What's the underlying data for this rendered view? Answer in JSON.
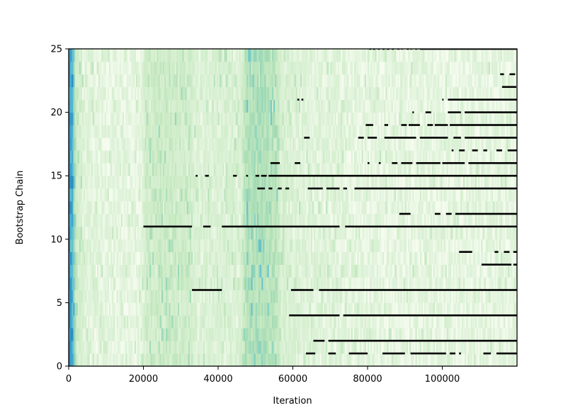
{
  "chart_data": {
    "type": "heatmap",
    "xlabel": "Iteration",
    "ylabel": "Bootstrap Chain",
    "xlim": [
      0,
      120000
    ],
    "ylim": [
      0,
      25
    ],
    "x_ticks": [
      0,
      20000,
      40000,
      60000,
      80000,
      100000
    ],
    "y_ticks": [
      0,
      5,
      10,
      15,
      20,
      25
    ],
    "x_tick_labels": [
      "0",
      "20000",
      "40000",
      "60000",
      "80000",
      "100000"
    ],
    "y_tick_labels": [
      "0",
      "5",
      "10",
      "15",
      "20",
      "25"
    ],
    "grid": false,
    "colormap": "GnBu",
    "colors": {
      "low": "#f7fcf0",
      "mid": "#a8ddb5",
      "high": "#2b8cbe",
      "marker": "#000000"
    },
    "intensity_profile": [
      {
        "x": 0,
        "level": 1.0
      },
      {
        "x": 1000,
        "level": 0.85
      },
      {
        "x": 2000,
        "level": 0.35
      },
      {
        "x": 4000,
        "level": 0.18
      },
      {
        "x": 10000,
        "level": 0.12
      },
      {
        "x": 19500,
        "level": 0.12
      },
      {
        "x": 20500,
        "level": 0.3
      },
      {
        "x": 26000,
        "level": 0.35
      },
      {
        "x": 32500,
        "level": 0.3
      },
      {
        "x": 34000,
        "level": 0.2
      },
      {
        "x": 46000,
        "level": 0.22
      },
      {
        "x": 47500,
        "level": 0.5
      },
      {
        "x": 52000,
        "level": 0.52
      },
      {
        "x": 55500,
        "level": 0.45
      },
      {
        "x": 57000,
        "level": 0.25
      },
      {
        "x": 62000,
        "level": 0.18
      },
      {
        "x": 80000,
        "level": 0.12
      },
      {
        "x": 120000,
        "level": 0.12
      }
    ],
    "marker_segments": [
      {
        "chain": 25,
        "segments": [
          [
            80500,
            81000
          ],
          [
            81500,
            82000
          ],
          [
            82800,
            83200
          ],
          [
            84000,
            84500
          ],
          [
            85200,
            85800
          ],
          [
            86500,
            87000
          ],
          [
            88000,
            88500
          ],
          [
            89000,
            89300
          ],
          [
            90500,
            91000
          ],
          [
            91500,
            91800
          ],
          [
            92800,
            93200
          ],
          [
            94000,
            120000
          ]
        ]
      },
      {
        "chain": 23,
        "segments": [
          [
            115500,
            116500
          ],
          [
            118000,
            119500
          ]
        ]
      },
      {
        "chain": 22,
        "segments": [
          [
            116000,
            119800
          ]
        ]
      },
      {
        "chain": 21,
        "segments": [
          [
            61200,
            61700
          ],
          [
            62300,
            62800
          ],
          [
            100000,
            100300
          ],
          [
            101500,
            120000
          ]
        ]
      },
      {
        "chain": 20,
        "segments": [
          [
            92000,
            92400
          ],
          [
            95500,
            97000
          ],
          [
            101500,
            105000
          ],
          [
            106000,
            120000
          ]
        ]
      },
      {
        "chain": 19,
        "segments": [
          [
            79500,
            81500
          ],
          [
            84500,
            85500
          ],
          [
            89000,
            90500
          ],
          [
            91000,
            94000
          ],
          [
            96000,
            97500
          ],
          [
            98000,
            101500
          ],
          [
            102000,
            120000
          ]
        ]
      },
      {
        "chain": 18,
        "segments": [
          [
            63000,
            64500
          ],
          [
            77500,
            79000
          ],
          [
            80000,
            82500
          ],
          [
            84500,
            93000
          ],
          [
            94000,
            101500
          ],
          [
            103000,
            105000
          ],
          [
            106000,
            120000
          ]
        ]
      },
      {
        "chain": 17,
        "segments": [
          [
            102500,
            103000
          ],
          [
            104500,
            106000
          ],
          [
            108000,
            109500
          ],
          [
            111000,
            112000
          ],
          [
            114500,
            116000
          ],
          [
            117500,
            120000
          ]
        ]
      },
      {
        "chain": 16,
        "segments": [
          [
            54000,
            56500
          ],
          [
            60500,
            62000
          ],
          [
            80000,
            80500
          ],
          [
            83000,
            83500
          ],
          [
            86500,
            88000
          ],
          [
            89000,
            92000
          ],
          [
            93000,
            99500
          ],
          [
            100000,
            106000
          ],
          [
            107000,
            120000
          ]
        ]
      },
      {
        "chain": 15,
        "segments": [
          [
            34000,
            34500
          ],
          [
            36500,
            37500
          ],
          [
            44000,
            45000
          ],
          [
            47500,
            48000
          ],
          [
            50000,
            51000
          ],
          [
            51500,
            53000
          ],
          [
            53500,
            120000
          ]
        ]
      },
      {
        "chain": 14,
        "segments": [
          [
            50500,
            52500
          ],
          [
            53500,
            54500
          ],
          [
            56000,
            57000
          ],
          [
            58000,
            59000
          ],
          [
            64000,
            68000
          ],
          [
            69000,
            72500
          ],
          [
            73500,
            74500
          ],
          [
            76500,
            120000
          ]
        ]
      },
      {
        "chain": 12,
        "segments": [
          [
            88500,
            91500
          ],
          [
            98000,
            99500
          ],
          [
            101000,
            102500
          ],
          [
            103500,
            120000
          ]
        ]
      },
      {
        "chain": 11,
        "segments": [
          [
            20000,
            33000
          ],
          [
            36000,
            38000
          ],
          [
            41000,
            72500
          ],
          [
            74000,
            120000
          ]
        ]
      },
      {
        "chain": 9,
        "segments": [
          [
            104500,
            108000
          ],
          [
            114000,
            115000
          ],
          [
            116500,
            118000
          ],
          [
            119000,
            120000
          ]
        ]
      },
      {
        "chain": 8,
        "segments": [
          [
            110500,
            118500
          ],
          [
            119000,
            120000
          ]
        ]
      },
      {
        "chain": 6,
        "segments": [
          [
            33000,
            41000
          ],
          [
            59500,
            65500
          ],
          [
            67000,
            120000
          ]
        ]
      },
      {
        "chain": 4,
        "segments": [
          [
            59000,
            72500
          ],
          [
            73500,
            120000
          ]
        ]
      },
      {
        "chain": 2,
        "segments": [
          [
            65500,
            68500
          ],
          [
            69500,
            120000
          ]
        ]
      },
      {
        "chain": 1,
        "segments": [
          [
            63500,
            66000
          ],
          [
            69500,
            71500
          ],
          [
            75000,
            80000
          ],
          [
            84000,
            90000
          ],
          [
            91500,
            101000
          ],
          [
            102000,
            103500
          ],
          [
            104500,
            105000
          ],
          [
            111000,
            113000
          ],
          [
            114500,
            120000
          ]
        ]
      }
    ]
  }
}
